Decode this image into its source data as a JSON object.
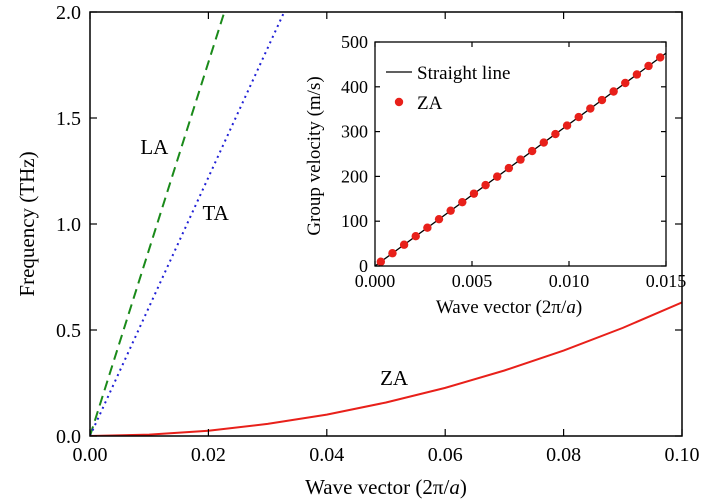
{
  "chart_data": [
    {
      "type": "line",
      "xlabel": "Wave vector (2π/a)",
      "ylabel": "Frequency (THz)",
      "xlim": [
        0.0,
        0.1
      ],
      "ylim": [
        0.0,
        2.0
      ],
      "xticks": [
        0.0,
        0.02,
        0.04,
        0.06,
        0.08,
        0.1
      ],
      "xtick_labels": [
        "0.00",
        "0.02",
        "0.04",
        "0.06",
        "0.08",
        "0.10"
      ],
      "yticks": [
        0.0,
        0.5,
        1.0,
        1.5,
        2.0
      ],
      "ytick_labels": [
        "0.0",
        "0.5",
        "1.0",
        "1.5",
        "2.0"
      ],
      "series": [
        {
          "name": "LA",
          "color": "#1a8a1a",
          "style": "dashed",
          "x": [
            0.0,
            0.0055,
            0.011,
            0.0165,
            0.0227
          ],
          "y": [
            0.0,
            0.485,
            0.97,
            1.455,
            2.0
          ]
        },
        {
          "name": "TA",
          "color": "#1f1fd6",
          "style": "dotted",
          "x": [
            0.0,
            0.008,
            0.016,
            0.024,
            0.0328
          ],
          "y": [
            0.0,
            0.488,
            0.976,
            1.464,
            2.0
          ]
        },
        {
          "name": "ZA",
          "color": "#e8201a",
          "style": "solid",
          "x": [
            0.0,
            0.01,
            0.02,
            0.03,
            0.04,
            0.05,
            0.06,
            0.07,
            0.08,
            0.09,
            0.1
          ],
          "y": [
            0.0,
            0.0063,
            0.025,
            0.057,
            0.101,
            0.158,
            0.227,
            0.309,
            0.403,
            0.51,
            0.63
          ]
        }
      ],
      "annotations": [
        {
          "text": "LA",
          "x": 0.0085,
          "y": 1.33
        },
        {
          "text": "TA",
          "x": 0.019,
          "y": 1.02
        },
        {
          "text": "ZA",
          "x": 0.049,
          "y": 0.24
        }
      ],
      "grid": false
    },
    {
      "type": "line",
      "xlabel": "Wave vector (2π/a)",
      "ylabel": "Group velocity (m/s)",
      "xlim": [
        0.0,
        0.015
      ],
      "ylim": [
        0,
        500
      ],
      "xticks": [
        0.0,
        0.005,
        0.01,
        0.015
      ],
      "xtick_labels": [
        "0.000",
        "0.005",
        "0.010",
        "0.015"
      ],
      "yticks": [
        0,
        100,
        200,
        300,
        400,
        500
      ],
      "ytick_labels": [
        "0",
        "100",
        "200",
        "300",
        "400",
        "500"
      ],
      "legend_position": "top-left",
      "series": [
        {
          "name": "Straight line",
          "color": "#000000",
          "style": "solid",
          "x": [
            0.0,
            0.015
          ],
          "y": [
            0,
            475
          ]
        },
        {
          "name": "ZA",
          "color": "#e8201a",
          "style": "markers",
          "x": [
            0.0003,
            0.0009,
            0.0015,
            0.0021,
            0.0027,
            0.0033,
            0.0039,
            0.0045,
            0.0051,
            0.0057,
            0.0063,
            0.0069,
            0.0075,
            0.0081,
            0.0087,
            0.0093,
            0.0099,
            0.0105,
            0.0111,
            0.0117,
            0.0123,
            0.0129,
            0.0135,
            0.0141,
            0.0147
          ],
          "y": [
            9.5,
            28.5,
            47.5,
            66.5,
            85.5,
            104.5,
            123.5,
            142.5,
            161.5,
            180.5,
            199.5,
            218.5,
            237.5,
            256.5,
            275.5,
            294.5,
            313.5,
            332.5,
            351.5,
            370.5,
            389.5,
            408.5,
            427.5,
            446.5,
            465.5
          ]
        }
      ],
      "grid": false
    }
  ]
}
